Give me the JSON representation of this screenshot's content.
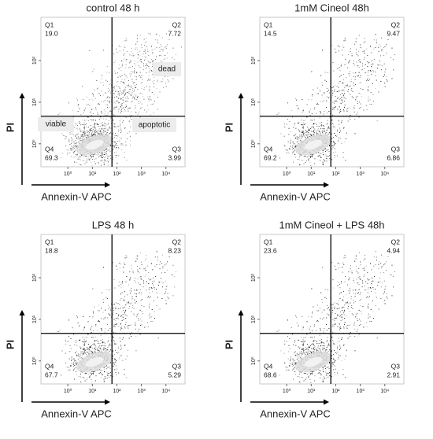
{
  "chart_data": [
    {
      "type": "flow",
      "title": "control 48 h",
      "xlabel": "Annexin-V APC",
      "ylabel": "PI",
      "log_scale": true,
      "xlim": [
        0.08,
        60000
      ],
      "ylim": [
        0.28,
        1100
      ],
      "xticks": [
        {
          "value": 1,
          "label": "10⁰"
        },
        {
          "value": 10,
          "label": "10¹"
        },
        {
          "value": 100,
          "label": "10²"
        },
        {
          "value": 1000,
          "label": "10³"
        },
        {
          "value": 10000,
          "label": "10⁴"
        }
      ],
      "yticks": [
        {
          "value": 1,
          "label": "10⁰"
        },
        {
          "value": 10,
          "label": "10¹"
        },
        {
          "value": 100,
          "label": "10²"
        }
      ],
      "gate": {
        "x": 63,
        "y": 4.6
      },
      "quadrants": {
        "names": [
          "Q1",
          "Q2",
          "Q3",
          "Q4"
        ],
        "values": [
          19.0,
          7.72,
          3.99,
          69.3
        ],
        "value_labels": [
          "19.0",
          "7.72",
          "3.99",
          "69.3"
        ]
      },
      "annotations": [
        "dead",
        "viable",
        "apoptotic"
      ]
    },
    {
      "type": "flow",
      "title": "1mM Cineol 48h",
      "xlabel": "Annexin-V APC",
      "ylabel": "PI",
      "log_scale": true,
      "xlim": [
        0.08,
        60000
      ],
      "ylim": [
        0.28,
        1100
      ],
      "xticks": [
        {
          "value": 1,
          "label": "10⁰"
        },
        {
          "value": 10,
          "label": "10¹"
        },
        {
          "value": 100,
          "label": "10²"
        },
        {
          "value": 1000,
          "label": "10³"
        },
        {
          "value": 10000,
          "label": "10⁴"
        }
      ],
      "yticks": [
        {
          "value": 1,
          "label": "10⁰"
        },
        {
          "value": 10,
          "label": "10¹"
        },
        {
          "value": 100,
          "label": "10²"
        }
      ],
      "gate": {
        "x": 63,
        "y": 4.6
      },
      "quadrants": {
        "names": [
          "Q1",
          "Q2",
          "Q3",
          "Q4"
        ],
        "values": [
          14.5,
          9.47,
          6.86,
          69.2
        ],
        "value_labels": [
          "14.5",
          "9.47",
          "6.86",
          "69.2"
        ]
      }
    },
    {
      "type": "flow",
      "title": "LPS 48 h",
      "xlabel": "Annexin-V APC",
      "ylabel": "PI",
      "log_scale": true,
      "xlim": [
        0.08,
        60000
      ],
      "ylim": [
        0.28,
        1100
      ],
      "xticks": [
        {
          "value": 1,
          "label": "10⁰"
        },
        {
          "value": 10,
          "label": "10¹"
        },
        {
          "value": 100,
          "label": "10²"
        },
        {
          "value": 1000,
          "label": "10³"
        },
        {
          "value": 10000,
          "label": "10⁴"
        }
      ],
      "yticks": [
        {
          "value": 1,
          "label": "10⁰"
        },
        {
          "value": 10,
          "label": "10¹"
        },
        {
          "value": 100,
          "label": "10²"
        }
      ],
      "gate": {
        "x": 63,
        "y": 4.6
      },
      "quadrants": {
        "names": [
          "Q1",
          "Q2",
          "Q3",
          "Q4"
        ],
        "values": [
          18.8,
          8.23,
          5.29,
          67.7
        ],
        "value_labels": [
          "18.8",
          "8.23",
          "5.29",
          "67.7"
        ]
      }
    },
    {
      "type": "flow",
      "title": "1mM Cineol + LPS 48h",
      "xlabel": "Annexin-V APC",
      "ylabel": "PI",
      "log_scale": true,
      "xlim": [
        0.08,
        60000
      ],
      "ylim": [
        0.28,
        1100
      ],
      "xticks": [
        {
          "value": 1,
          "label": "10⁰"
        },
        {
          "value": 10,
          "label": "10¹"
        },
        {
          "value": 100,
          "label": "10²"
        },
        {
          "value": 1000,
          "label": "10³"
        },
        {
          "value": 10000,
          "label": "10⁴"
        }
      ],
      "yticks": [
        {
          "value": 1,
          "label": "10⁰"
        },
        {
          "value": 10,
          "label": "10¹"
        },
        {
          "value": 100,
          "label": "10²"
        }
      ],
      "gate": {
        "x": 63,
        "y": 4.6
      },
      "quadrants": {
        "names": [
          "Q1",
          "Q2",
          "Q3",
          "Q4"
        ],
        "values": [
          23.6,
          4.94,
          2.91,
          68.6
        ],
        "value_labels": [
          "23.6",
          "4.94",
          "2.91",
          "68.6"
        ]
      }
    }
  ]
}
